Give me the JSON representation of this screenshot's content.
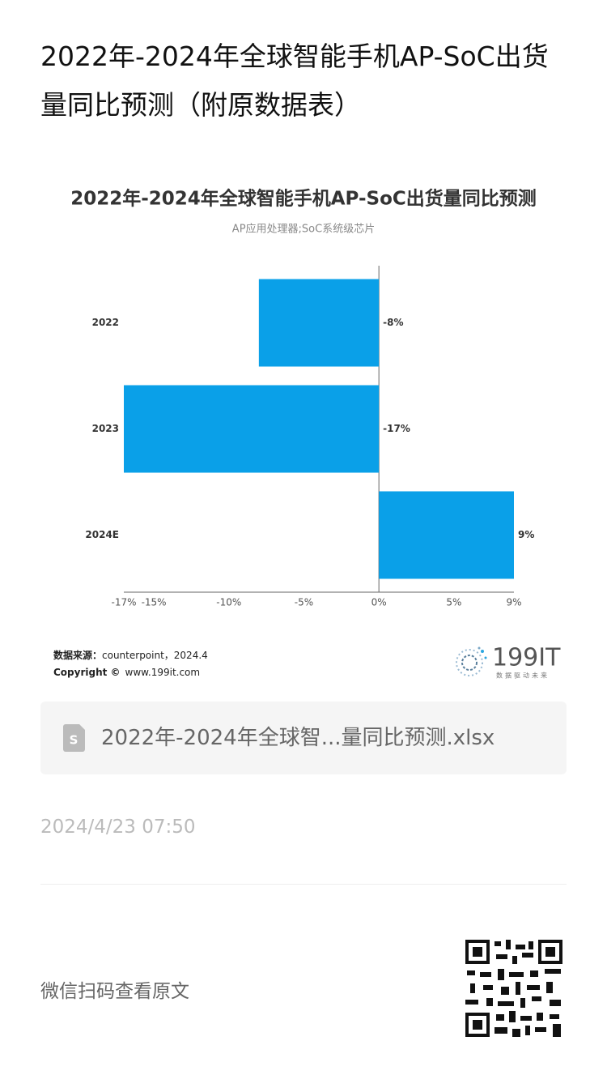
{
  "header": {
    "title": "2022年-2024年全球智能手机AP-SoC出货量同比预测（附原数据表）"
  },
  "chart_data": {
    "type": "bar",
    "orientation": "horizontal",
    "title": "2022年-2024年全球智能手机AP-SoC出货量同比预测",
    "subtitle": "AP应用处理器;SoC系统级芯片",
    "categories": [
      "2022",
      "2023",
      "2024E"
    ],
    "values": [
      -8,
      -17,
      9
    ],
    "value_labels": [
      "-8%",
      "-17%",
      "9%"
    ],
    "color": "#0aa0e8",
    "xlim": [
      -17,
      9
    ],
    "xticks": [
      {
        "value": -17,
        "label": "-17%"
      },
      {
        "value": -15,
        "label": "-15%"
      },
      {
        "value": -10,
        "label": "-10%"
      },
      {
        "value": -5,
        "label": "-5%"
      },
      {
        "value": 0,
        "label": "0%"
      },
      {
        "value": 5,
        "label": "5%"
      },
      {
        "value": 9,
        "label": "9%"
      }
    ],
    "grid": false,
    "source": {
      "label": "数据来源：",
      "text": "counterpoint，2024.4"
    },
    "copyright": {
      "label": "Copyright ©",
      "text": "www.199it.com"
    },
    "logo": {
      "name": "199IT",
      "slogan": "数据驱动未来"
    }
  },
  "attachment": {
    "filename": "2022年-2024年全球智...量同比预测.xlsx"
  },
  "date": "2024/4/23 07:50",
  "footer": {
    "scan_text": "微信扫码查看原文"
  }
}
